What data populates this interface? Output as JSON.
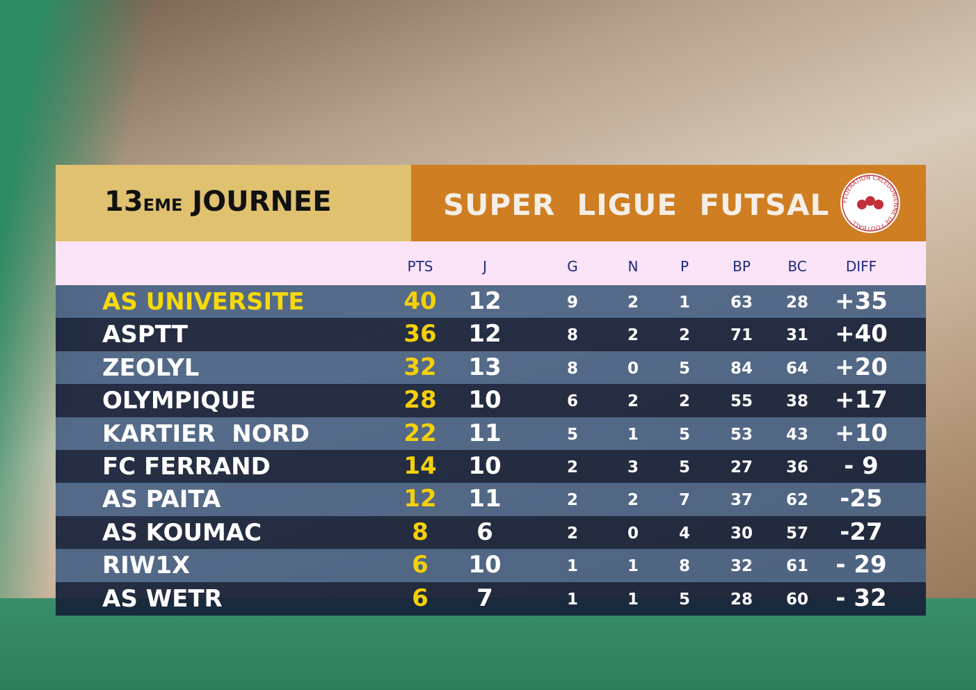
{
  "header": {
    "round_number": "13",
    "round_suffix": "EME",
    "round_word": "JOURNEE",
    "title": "SUPER  LIGUE  FUTSAL",
    "logo_text": "FÉDÉRATION CALÉDONIENNE DE FOOTBALL"
  },
  "table": {
    "columns": [
      "PTS",
      "J",
      "G",
      "N",
      "P",
      "BP",
      "BC",
      "DIFF"
    ],
    "rows": [
      [
        "AS UNIVERSITE",
        40,
        12,
        9,
        2,
        1,
        63,
        28,
        "+35"
      ],
      [
        "ASPTT",
        36,
        12,
        8,
        2,
        2,
        71,
        31,
        "+40"
      ],
      [
        "ZEOLYL",
        32,
        13,
        8,
        0,
        5,
        84,
        64,
        "+20"
      ],
      [
        "OLYMPIQUE",
        28,
        10,
        6,
        2,
        2,
        55,
        38,
        "+17"
      ],
      [
        "KARTIER  NORD",
        22,
        11,
        5,
        1,
        5,
        53,
        43,
        "+10"
      ],
      [
        "FC FERRAND",
        14,
        10,
        2,
        3,
        5,
        27,
        36,
        "- 9"
      ],
      [
        "AS PAITA",
        12,
        11,
        2,
        2,
        7,
        37,
        62,
        "-25"
      ],
      [
        "AS KOUMAC",
        8,
        6,
        2,
        0,
        4,
        30,
        57,
        "-27"
      ],
      [
        "RIW1X",
        6,
        10,
        1,
        1,
        8,
        32,
        61,
        "- 29"
      ],
      [
        "AS WETR",
        6,
        7,
        1,
        1,
        5,
        28,
        60,
        "- 32"
      ]
    ]
  }
}
